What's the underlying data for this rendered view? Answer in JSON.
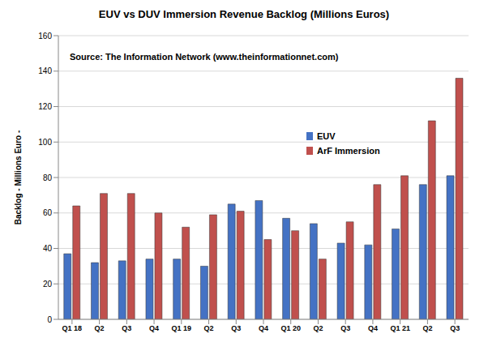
{
  "chart_data": {
    "type": "bar",
    "title": "EUV vs DUV Immersion Revenue Backlog (Millions Euros)",
    "annotation": "Source: The Information Network (www.theinformationnet.com)",
    "y_label": "Backlog - Millions Euro -",
    "categories": [
      "Q1 18",
      "Q2",
      "Q3",
      "Q4",
      "Q1 19",
      "Q2",
      "Q3",
      "Q4",
      "Q1 20",
      "Q2",
      "Q3",
      "Q4",
      "Q1 21",
      "Q2",
      "Q3"
    ],
    "series": [
      {
        "name": "EUV",
        "color": "#4472c4",
        "values": [
          37,
          32,
          33,
          34,
          34,
          30,
          65,
          67,
          57,
          54,
          43,
          42,
          51,
          76,
          81
        ]
      },
      {
        "name": "ArF Immersion",
        "color": "#c0504d",
        "values": [
          64,
          71,
          71,
          60,
          52,
          59,
          61,
          45,
          50,
          34,
          55,
          76,
          81,
          112,
          136
        ]
      }
    ],
    "ylim": [
      0,
      160
    ],
    "yticks": [
      0,
      20,
      40,
      60,
      80,
      100,
      120,
      140,
      160
    ],
    "grid": true,
    "legend": "upper center"
  }
}
